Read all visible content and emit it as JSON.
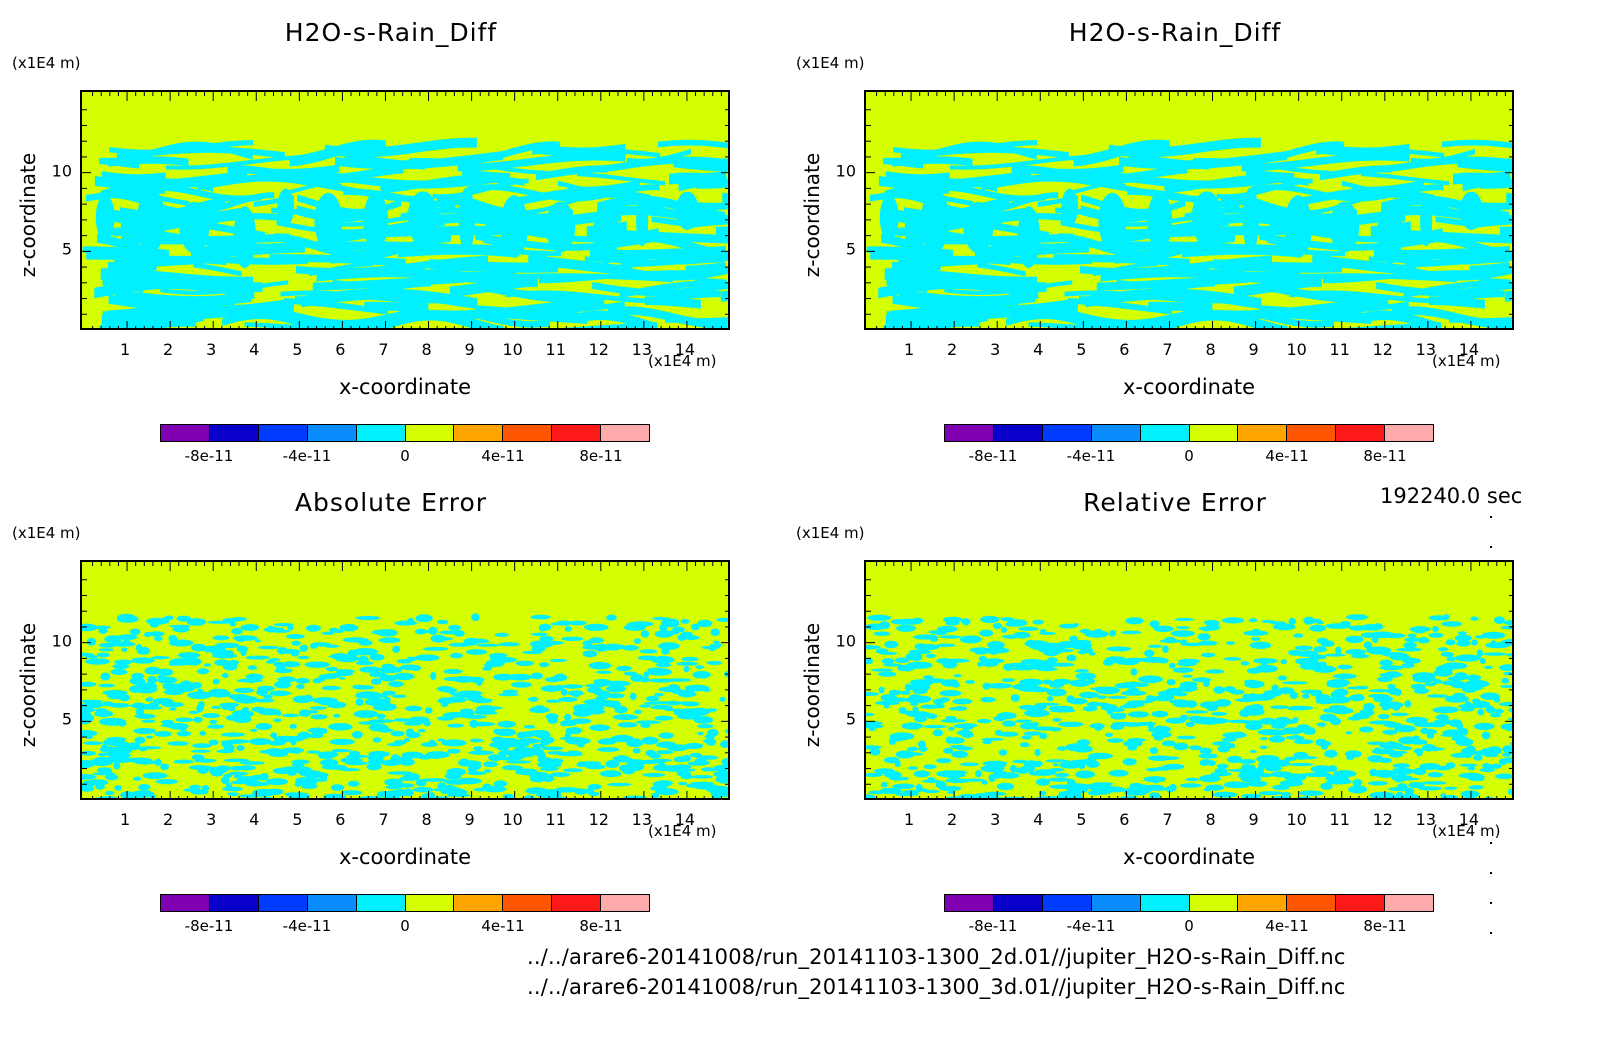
{
  "panels": [
    {
      "title": "H2O-s-Rain_Diff",
      "pattern": "layered"
    },
    {
      "title": "H2O-s-Rain_Diff",
      "pattern": "layered"
    },
    {
      "title": "Absolute Error",
      "pattern": "noise"
    },
    {
      "title": "Relative Error",
      "pattern": "noise"
    }
  ],
  "axes": {
    "y_unit": "(x1E4 m)",
    "x_unit": "(x1E4 m)",
    "ylabel": "z-coordinate",
    "xlabel": "x-coordinate",
    "x_ticks": [
      "1",
      "2",
      "3",
      "4",
      "5",
      "6",
      "7",
      "8",
      "9",
      "10",
      "11",
      "12",
      "13",
      "14"
    ],
    "y_ticks": [
      "5",
      "10"
    ]
  },
  "colorbar": {
    "colors": [
      "#7f00b0",
      "#0a00cc",
      "#003cff",
      "#0a8cff",
      "#00f0ff",
      "#d4ff00",
      "#ffa500",
      "#ff5500",
      "#ff1a1a",
      "#ffaaaa"
    ],
    "labels": [
      "-8e-11",
      "-4e-11",
      "0",
      "4e-11",
      "8e-11"
    ]
  },
  "time_label": "192240.0 sec",
  "files": [
    "../../arare6-20141008/run_20141103-1300_2d.01//jupiter_H2O-s-Rain_Diff.nc",
    "../../arare6-20141008/run_20141103-1300_3d.01//jupiter_H2O-s-Rain_Diff.nc"
  ],
  "chart_data": [
    {
      "type": "heatmap",
      "title": "H2O-s-Rain_Diff",
      "xlabel": "x-coordinate",
      "ylabel": "z-coordinate",
      "xlim": [
        0,
        15
      ],
      "ylim": [
        0,
        15
      ],
      "x_unit": "(x1E4 m)",
      "y_unit": "(x1E4 m)",
      "color_levels": [
        "-8e-11",
        "-4e-11",
        "0",
        "4e-11",
        "8e-11"
      ]
    },
    {
      "type": "heatmap",
      "title": "H2O-s-Rain_Diff",
      "xlabel": "x-coordinate",
      "ylabel": "z-coordinate",
      "xlim": [
        0,
        15
      ],
      "ylim": [
        0,
        15
      ],
      "x_unit": "(x1E4 m)",
      "y_unit": "(x1E4 m)",
      "color_levels": [
        "-8e-11",
        "-4e-11",
        "0",
        "4e-11",
        "8e-11"
      ]
    },
    {
      "type": "heatmap",
      "title": "Absolute Error",
      "xlabel": "x-coordinate",
      "ylabel": "z-coordinate",
      "xlim": [
        0,
        15
      ],
      "ylim": [
        0,
        15
      ],
      "x_unit": "(x1E4 m)",
      "y_unit": "(x1E4 m)",
      "color_levels": [
        "-8e-11",
        "-4e-11",
        "0",
        "4e-11",
        "8e-11"
      ]
    },
    {
      "type": "heatmap",
      "title": "Relative Error",
      "xlabel": "x-coordinate",
      "ylabel": "z-coordinate",
      "xlim": [
        0,
        15
      ],
      "ylim": [
        0,
        15
      ],
      "x_unit": "(x1E4 m)",
      "y_unit": "(x1E4 m)",
      "color_levels": [
        "-8e-11",
        "-4e-11",
        "0",
        "4e-11",
        "8e-11"
      ]
    }
  ]
}
